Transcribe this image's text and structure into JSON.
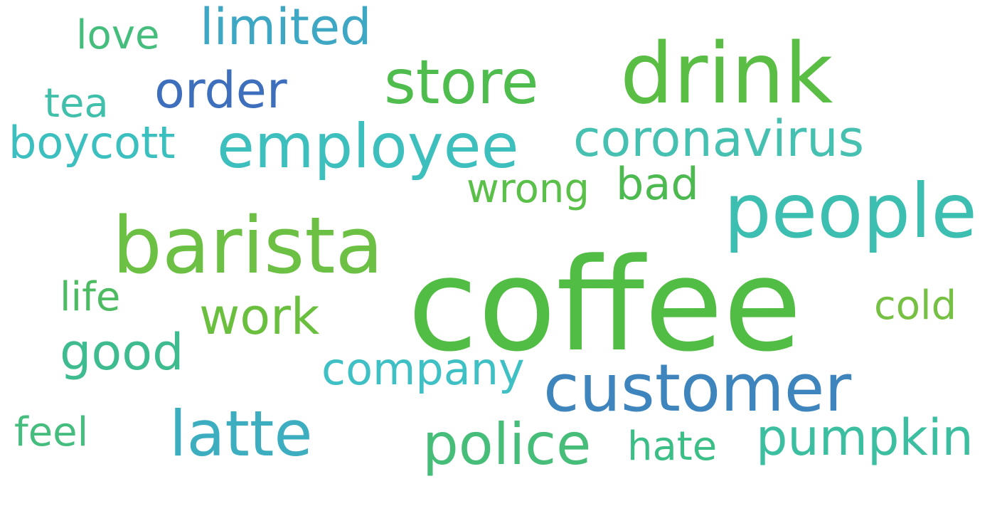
{
  "words": [
    {
      "id": "coffee",
      "text": "coffee",
      "color": "#52bd45"
    },
    {
      "id": "barista",
      "text": "barista",
      "color": "#6cc043"
    },
    {
      "id": "drink",
      "text": "drink",
      "color": "#5abd44"
    },
    {
      "id": "customer",
      "text": "customer",
      "color": "#3e84bd"
    },
    {
      "id": "people",
      "text": "people",
      "color": "#3cbfb1"
    },
    {
      "id": "employee",
      "text": "employee",
      "color": "#3cbfbd"
    },
    {
      "id": "store",
      "text": "store",
      "color": "#4fbc4e"
    },
    {
      "id": "coronavirus",
      "text": "coronavirus",
      "color": "#45c0b1"
    },
    {
      "id": "latte",
      "text": "latte",
      "color": "#3caec0"
    },
    {
      "id": "police",
      "text": "police",
      "color": "#46be7a"
    },
    {
      "id": "pumpkin",
      "text": "pumpkin",
      "color": "#3cbfa0"
    },
    {
      "id": "order",
      "text": "order",
      "color": "#3e6fbc"
    },
    {
      "id": "limited",
      "text": "limited",
      "color": "#3ea8c4"
    },
    {
      "id": "work",
      "text": "work",
      "color": "#6bbf3e"
    },
    {
      "id": "good",
      "text": "good",
      "color": "#3ebb8f"
    },
    {
      "id": "company",
      "text": "company",
      "color": "#3ec0c4"
    },
    {
      "id": "boycott",
      "text": "boycott",
      "color": "#3cbfbf"
    },
    {
      "id": "bad",
      "text": "bad",
      "color": "#4cba50"
    },
    {
      "id": "wrong",
      "text": "wrong",
      "color": "#5ac049"
    },
    {
      "id": "hate",
      "text": "hate",
      "color": "#3cbf86"
    },
    {
      "id": "love",
      "text": "love",
      "color": "#45bd7c"
    },
    {
      "id": "tea",
      "text": "tea",
      "color": "#40bfaa"
    },
    {
      "id": "life",
      "text": "life",
      "color": "#4dbb62"
    },
    {
      "id": "feel",
      "text": "feel",
      "color": "#45bd7e"
    },
    {
      "id": "cold",
      "text": "cold",
      "color": "#76c043"
    }
  ]
}
